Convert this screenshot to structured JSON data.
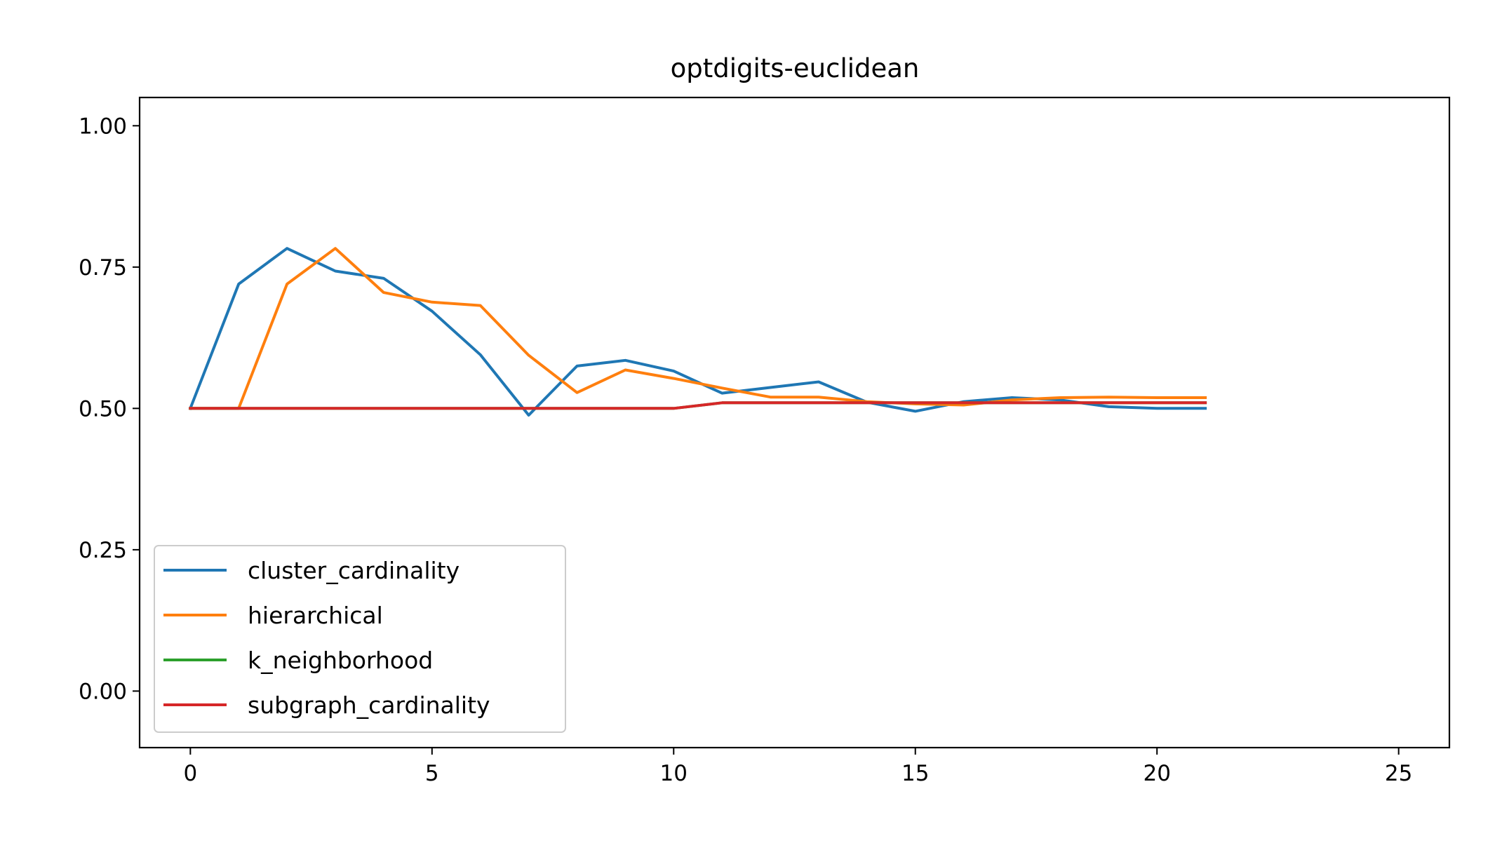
{
  "chart_data": {
    "type": "line",
    "title": "optdigits-euclidean",
    "xlabel": "",
    "ylabel": "",
    "xlim": [
      -1.05,
      26.05
    ],
    "ylim": [
      -0.1,
      1.05
    ],
    "x_ticks": [
      0,
      5,
      10,
      15,
      20,
      25
    ],
    "x_tick_labels": [
      "0",
      "5",
      "10",
      "15",
      "20",
      "25"
    ],
    "y_ticks": [
      0.0,
      0.25,
      0.5,
      0.75,
      1.0
    ],
    "y_tick_labels": [
      "0.00",
      "0.25",
      "0.50",
      "0.75",
      "1.00"
    ],
    "grid": false,
    "legend_position": "lower-left",
    "x": [
      0,
      1,
      2,
      3,
      4,
      5,
      6,
      7,
      8,
      9,
      10,
      11,
      12,
      13,
      14,
      15,
      16,
      17,
      18,
      19,
      20,
      21
    ],
    "series": [
      {
        "name": "cluster_cardinality",
        "color": "#1f77b4",
        "values": [
          0.5,
          0.72,
          0.783,
          0.743,
          0.73,
          0.672,
          0.595,
          0.488,
          0.575,
          0.585,
          0.566,
          0.527,
          0.537,
          0.547,
          0.511,
          0.495,
          0.512,
          0.519,
          0.515,
          0.503,
          0.5,
          0.5
        ]
      },
      {
        "name": "hierarchical",
        "color": "#ff7f0e",
        "values": [
          0.5,
          0.5,
          0.72,
          0.783,
          0.705,
          0.688,
          0.682,
          0.594,
          0.528,
          0.568,
          0.553,
          0.536,
          0.52,
          0.52,
          0.512,
          0.508,
          0.506,
          0.515,
          0.519,
          0.52,
          0.519,
          0.519
        ]
      },
      {
        "name": "k_neighborhood",
        "color": "#2ca02c",
        "values": [
          0.5,
          0.5,
          0.5,
          0.5,
          0.5,
          0.5,
          0.5,
          0.5,
          0.5,
          0.5,
          0.5,
          0.51,
          0.51,
          0.51,
          0.51,
          0.51,
          0.51,
          0.51,
          0.51,
          0.51,
          0.51,
          0.51
        ]
      },
      {
        "name": "subgraph_cardinality",
        "color": "#d62728",
        "values": [
          0.5,
          0.5,
          0.5,
          0.5,
          0.5,
          0.5,
          0.5,
          0.5,
          0.5,
          0.5,
          0.5,
          0.51,
          0.51,
          0.51,
          0.51,
          0.51,
          0.51,
          0.51,
          0.51,
          0.51,
          0.51,
          0.51
        ]
      }
    ]
  }
}
